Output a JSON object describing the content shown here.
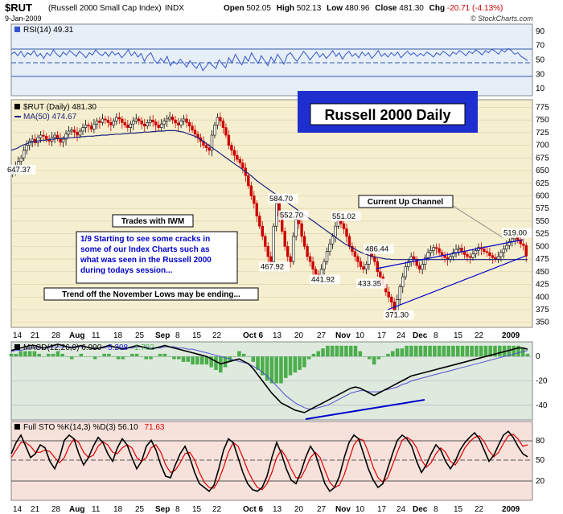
{
  "header": {
    "symbol": "$RUT",
    "name": "(Russell 2000 Small Cap Index)",
    "exchange": "INDX",
    "date": "9-Jan-2009",
    "open_label": "Open",
    "open": "502.05",
    "high_label": "High",
    "high": "502.13",
    "low_label": "Low",
    "low": "480.96",
    "close_label": "Close",
    "close": "481.30",
    "chg_label": "Chg",
    "chg": "-20.71 (-4.13%)",
    "copyright": "© StockCharts.com"
  },
  "colors": {
    "price_bg": "#f6efcf",
    "rsi_bg": "#e6eef7",
    "macd_bg": "#dfeadf",
    "sto_bg": "#f6e1db",
    "up": "#000000",
    "down": "#cc0000",
    "ma": "#1a237e",
    "macd_hist": "#4cae4c",
    "title_box": "#1f2fcf",
    "annotation_text": "#0000cc",
    "trendline": "#0000cc"
  },
  "rsi": {
    "label": "RSI(14) 49.31",
    "ticks": [
      "90",
      "70",
      "50",
      "30",
      "10"
    ],
    "chart_data": {
      "type": "line",
      "x": [
        0,
        4,
        8,
        12,
        16,
        20,
        24,
        28,
        32,
        36,
        40,
        44,
        48,
        52,
        56,
        60,
        64,
        68,
        72,
        76,
        80,
        84,
        88,
        92,
        96,
        100,
        104,
        108,
        112,
        116,
        120,
        124,
        128,
        132,
        136,
        140,
        144,
        148,
        152,
        156,
        160,
        164,
        168,
        172,
        176,
        180,
        184,
        188,
        192,
        196,
        200,
        204,
        208,
        212,
        216,
        220,
        224,
        228,
        232,
        236,
        240,
        244,
        248,
        252,
        256,
        260,
        264,
        268,
        272,
        276,
        280,
        284,
        288,
        292,
        296,
        300,
        304,
        308,
        312,
        316,
        320,
        324,
        328,
        332,
        336,
        340,
        344,
        348,
        352,
        356,
        360,
        364,
        368,
        372,
        376,
        380,
        384,
        388,
        392,
        396,
        400,
        404,
        408,
        412,
        416,
        420,
        424,
        428,
        432,
        436,
        440,
        444,
        448,
        452,
        456,
        460,
        464,
        468,
        472,
        476,
        480,
        484,
        488,
        492,
        496,
        500,
        504,
        508,
        512,
        516,
        520,
        524,
        528,
        532,
        536,
        540,
        544,
        548,
        552,
        556,
        560,
        564,
        568,
        572,
        576,
        580,
        584,
        588,
        592,
        596,
        600,
        604,
        608,
        612,
        616,
        620,
        624,
        628,
        632,
        636
      ],
      "values": [
        58,
        61,
        56,
        62,
        54,
        60,
        57,
        63,
        55,
        59,
        52,
        60,
        56,
        64,
        58,
        54,
        61,
        57,
        63,
        59,
        55,
        62,
        58,
        53,
        60,
        57,
        64,
        59,
        56,
        61,
        55,
        62,
        57,
        60,
        53,
        58,
        64,
        56,
        61,
        54,
        59,
        48,
        56,
        60,
        50,
        45,
        52,
        47,
        55,
        42,
        48,
        44,
        51,
        46,
        40,
        49,
        43,
        38,
        46,
        35,
        41,
        47,
        42,
        38,
        50,
        44,
        39,
        53,
        46,
        58,
        50,
        43,
        55,
        48,
        60,
        52,
        45,
        56,
        49,
        42,
        54,
        47,
        58,
        51,
        44,
        57,
        60,
        53,
        48,
        55,
        62,
        57,
        50,
        56,
        61,
        54,
        59,
        52,
        57,
        63,
        55,
        60,
        51,
        58,
        62,
        55,
        59,
        53,
        61,
        56,
        60,
        52,
        57,
        63,
        55,
        59,
        54,
        60,
        56,
        61,
        53,
        58,
        62,
        57,
        60,
        55,
        59,
        56,
        61,
        58,
        54,
        60,
        57,
        62,
        59,
        55,
        61,
        58,
        63,
        60,
        56,
        62,
        59,
        64,
        61,
        57,
        63,
        60,
        65,
        62,
        58,
        64,
        61,
        66,
        63,
        58,
        60,
        55,
        52,
        49
      ]
    }
  },
  "price": {
    "legend_price": "$RUT (Daily) 481.30",
    "legend_ma": "MA(50) 474.67",
    "title_box": "Russell 2000 Daily",
    "ticks": [
      "775",
      "750",
      "725",
      "700",
      "675",
      "650",
      "625",
      "600",
      "575",
      "550",
      "525",
      "500",
      "475",
      "450",
      "425",
      "400",
      "375",
      "350"
    ],
    "labels": [
      {
        "text": "647.37",
        "name": "label-647-37"
      },
      {
        "text": "584.70",
        "name": "label-584-70"
      },
      {
        "text": "552.70",
        "name": "label-552-70"
      },
      {
        "text": "551.02",
        "name": "label-551-02"
      },
      {
        "text": "486.44",
        "name": "label-486-44"
      },
      {
        "text": "467.92",
        "name": "label-467-92"
      },
      {
        "text": "441.92",
        "name": "label-441-92"
      },
      {
        "text": "433.35",
        "name": "label-433-35"
      },
      {
        "text": "371.30",
        "name": "label-371-30"
      },
      {
        "text": "519.00",
        "name": "label-519-00"
      }
    ],
    "annotations": {
      "trades": "Trades with IWM",
      "note_line1": "1/9  Starting to see some cracks in",
      "note_line2": "some of our Index Charts such as",
      "note_line3": "what was seen in the Russell 2000",
      "note_line4": "during todays session...",
      "trend": "Trend off the November Lows may be ending...",
      "channel": "Current Up Channel"
    },
    "chart_data": {
      "type": "candlestick",
      "close_series": [
        648,
        660,
        668,
        675,
        690,
        700,
        708,
        712,
        705,
        715,
        720,
        718,
        712,
        708,
        716,
        720,
        714,
        706,
        712,
        722,
        728,
        730,
        726,
        720,
        728,
        735,
        740,
        738,
        732,
        742,
        748,
        745,
        752,
        750,
        745,
        740,
        748,
        755,
        752,
        745,
        740,
        735,
        742,
        748,
        752,
        748,
        742,
        738,
        745,
        750,
        746,
        740,
        735,
        742,
        748,
        752,
        756,
        750,
        744,
        740,
        748,
        752,
        745,
        738,
        730,
        722,
        715,
        708,
        700,
        695,
        690,
        720,
        740,
        755,
        748,
        735,
        720,
        700,
        690,
        680,
        672,
        665,
        655,
        640,
        620,
        600,
        585,
        560,
        540,
        520,
        500,
        480,
        470,
        540,
        585,
        560,
        530,
        500,
        480,
        470,
        520,
        552,
        545,
        520,
        500,
        480,
        470,
        455,
        445,
        442,
        455,
        470,
        490,
        505,
        520,
        540,
        551,
        545,
        535,
        520,
        500,
        490,
        480,
        470,
        460,
        455,
        465,
        486,
        480,
        470,
        450,
        440,
        425,
        410,
        400,
        390,
        372,
        395,
        420,
        440,
        460,
        470,
        480,
        475,
        462,
        455,
        465,
        478,
        488,
        492,
        498,
        496,
        488,
        482,
        478,
        474,
        480,
        488,
        494,
        497,
        490,
        484,
        480,
        478,
        485,
        492,
        498,
        495,
        490,
        488,
        482,
        478,
        475,
        480,
        488,
        495,
        502,
        510,
        515,
        519,
        512,
        505,
        502,
        481
      ],
      "ma50": [
        690,
        692,
        694,
        697,
        700,
        702,
        704,
        706,
        707,
        708,
        709,
        710,
        710,
        711,
        712,
        712,
        713,
        713,
        714,
        714,
        714,
        715,
        715,
        716,
        716,
        717,
        717,
        718,
        718,
        718,
        719,
        719,
        720,
        720,
        720,
        721,
        721,
        722,
        722,
        722,
        723,
        723,
        724,
        724,
        724,
        725,
        725,
        726,
        726,
        726,
        727,
        727,
        728,
        728,
        728,
        729,
        729,
        729,
        729,
        728,
        727,
        726,
        724,
        722,
        720,
        718,
        715,
        712,
        708,
        704,
        700,
        696,
        692,
        688,
        684,
        680,
        676,
        672,
        668,
        664,
        660,
        656,
        652,
        648,
        644,
        640,
        635,
        630,
        626,
        622,
        618,
        614,
        610,
        606,
        602,
        598,
        594,
        590,
        586,
        582,
        578,
        574,
        570,
        566,
        562,
        558,
        554,
        550,
        546,
        542,
        538,
        534,
        530,
        526,
        522,
        518,
        514,
        510,
        506,
        503,
        500,
        497,
        494,
        491,
        488,
        486,
        484,
        482,
        480,
        479,
        478,
        477,
        476,
        475,
        475,
        474,
        474,
        474,
        474,
        474,
        474,
        474,
        474,
        474,
        474,
        474,
        474,
        474,
        474,
        474,
        474,
        474,
        474,
        474,
        474,
        474,
        474,
        474,
        474,
        474,
        474,
        474,
        474,
        474,
        474,
        474,
        474,
        474,
        474,
        474,
        474,
        474,
        474,
        474,
        474,
        474,
        474,
        474,
        474,
        474,
        474,
        474,
        474,
        474
      ],
      "ylim": [
        340,
        790
      ]
    }
  },
  "macd": {
    "label_prefix": "MACD(12,26,9) ",
    "v1": "6.990",
    "v2": "5.208",
    "v3": "1.782",
    "ticks": [
      "0",
      "-20",
      "-40"
    ],
    "chart_data": {
      "type": "line",
      "macd": [
        5,
        6,
        7,
        8,
        9,
        9,
        8,
        7,
        8,
        9,
        10,
        9,
        8,
        7,
        8,
        9,
        8,
        7,
        6,
        7,
        8,
        9,
        8,
        7,
        6,
        7,
        8,
        9,
        8,
        7,
        6,
        7,
        8,
        9,
        8,
        7,
        6,
        5,
        4,
        3,
        2,
        1,
        0,
        -2,
        -4,
        -6,
        -5,
        -4,
        -3,
        -2,
        -4,
        -6,
        -10,
        -15,
        -20,
        -25,
        -30,
        -34,
        -38,
        -40,
        -42,
        -44,
        -45,
        -46,
        -44,
        -42,
        -40,
        -38,
        -36,
        -34,
        -32,
        -30,
        -28,
        -26,
        -25,
        -26,
        -28,
        -30,
        -32,
        -30,
        -28,
        -26,
        -24,
        -22,
        -20,
        -18,
        -16,
        -15,
        -14,
        -13,
        -12,
        -11,
        -10,
        -9,
        -8,
        -7,
        -6,
        -5,
        -4,
        -3,
        -2,
        -1,
        0,
        1,
        2,
        3,
        4,
        5,
        6,
        7,
        7,
        6
      ],
      "signal": [
        4,
        5,
        5,
        6,
        7,
        7,
        7,
        7,
        7,
        8,
        8,
        8,
        8,
        8,
        8,
        8,
        8,
        7,
        7,
        7,
        7,
        8,
        8,
        8,
        7,
        7,
        7,
        8,
        8,
        8,
        7,
        7,
        7,
        8,
        8,
        8,
        7,
        7,
        6,
        6,
        5,
        4,
        3,
        2,
        1,
        0,
        -1,
        -2,
        -3,
        -4,
        -5,
        -6,
        -8,
        -10,
        -13,
        -16,
        -20,
        -24,
        -28,
        -32,
        -35,
        -38,
        -40,
        -42,
        -43,
        -43,
        -42,
        -41,
        -40,
        -38,
        -36,
        -34,
        -32,
        -30,
        -29,
        -28,
        -28,
        -29,
        -29,
        -29,
        -28,
        -27,
        -26,
        -25,
        -23,
        -22,
        -20,
        -19,
        -18,
        -17,
        -16,
        -15,
        -14,
        -13,
        -12,
        -11,
        -10,
        -9,
        -8,
        -7,
        -6,
        -5,
        -4,
        -3,
        -2,
        -1,
        0,
        1,
        2,
        3,
        4,
        5
      ],
      "ylim": [
        -52,
        12
      ]
    }
  },
  "sto": {
    "label_prefix": "Full STO %K(14,3) %D(3) ",
    "v1": "56.10",
    "v2": "71.63",
    "ticks": [
      "80",
      "50",
      "20"
    ],
    "chart_data": {
      "type": "line",
      "k": [
        60,
        75,
        85,
        70,
        55,
        60,
        72,
        68,
        50,
        40,
        55,
        78,
        85,
        80,
        60,
        45,
        55,
        70,
        82,
        75,
        60,
        50,
        68,
        80,
        72,
        55,
        40,
        50,
        70,
        78,
        65,
        45,
        30,
        28,
        45,
        60,
        70,
        55,
        35,
        20,
        15,
        10,
        18,
        40,
        65,
        80,
        75,
        55,
        35,
        20,
        12,
        10,
        15,
        30,
        55,
        75,
        60,
        40,
        25,
        20,
        35,
        55,
        70,
        60,
        40,
        20,
        10,
        15,
        30,
        55,
        75,
        85,
        80,
        60,
        40,
        25,
        15,
        20,
        40,
        60,
        78,
        85,
        80,
        70,
        50,
        35,
        45,
        60,
        72,
        65,
        50,
        40,
        50,
        65,
        75,
        82,
        88,
        80,
        65,
        50,
        58,
        72,
        85,
        90,
        82,
        70,
        60,
        56
      ],
      "d": [
        55,
        65,
        75,
        75,
        70,
        62,
        62,
        65,
        63,
        55,
        48,
        55,
        70,
        80,
        75,
        62,
        55,
        58,
        70,
        76,
        72,
        62,
        60,
        68,
        72,
        68,
        55,
        50,
        55,
        68,
        72,
        62,
        45,
        35,
        38,
        48,
        60,
        62,
        52,
        35,
        22,
        15,
        14,
        25,
        42,
        62,
        75,
        70,
        55,
        38,
        25,
        15,
        12,
        20,
        35,
        55,
        65,
        55,
        40,
        28,
        28,
        40,
        55,
        62,
        55,
        38,
        22,
        15,
        18,
        32,
        52,
        72,
        80,
        78,
        62,
        42,
        28,
        22,
        28,
        45,
        62,
        78,
        82,
        78,
        68,
        52,
        42,
        48,
        60,
        68,
        62,
        50,
        45,
        55,
        68,
        76,
        82,
        84,
        76,
        64,
        56,
        62,
        74,
        84,
        86,
        80,
        70,
        72
      ],
      "ylim": [
        0,
        100
      ]
    }
  },
  "x_axis": {
    "labels": [
      "14",
      "21",
      "28",
      "Aug",
      "11",
      "18",
      "25",
      "Sep",
      "8",
      "15",
      "22",
      "Oct 6",
      "13",
      "20",
      "27",
      "Nov",
      "10",
      "17",
      "24",
      "Dec",
      "8",
      "15",
      "22",
      "2009"
    ]
  }
}
